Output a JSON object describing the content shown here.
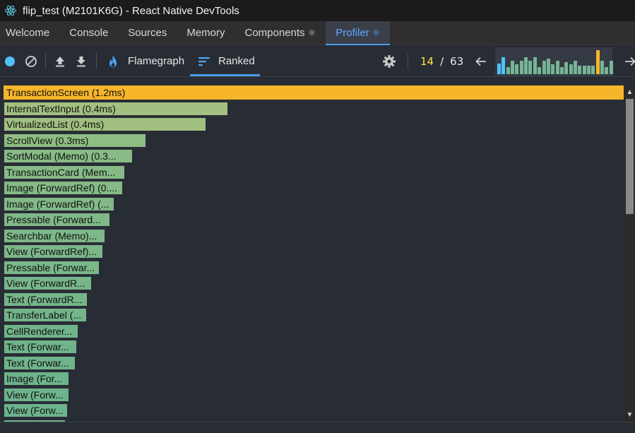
{
  "window": {
    "title": "flip_test (M2101K6G) - React Native DevTools"
  },
  "tabs": [
    {
      "label": "Welcome",
      "atom": ""
    },
    {
      "label": "Console",
      "atom": ""
    },
    {
      "label": "Sources",
      "atom": ""
    },
    {
      "label": "Memory",
      "atom": ""
    },
    {
      "label": "Components",
      "atom": "⚛"
    },
    {
      "label": "Profiler",
      "atom": "⚛"
    }
  ],
  "toolbar": {
    "flamegraph_label": "Flamegraph",
    "ranked_label": "Ranked",
    "commit_current": "14",
    "commit_separator": "/",
    "commit_total": "63",
    "commit_bars": [
      0.45,
      0.7,
      0.3,
      0.55,
      0.4,
      0.55,
      0.7,
      0.55,
      0.7,
      0.3,
      0.55,
      0.65,
      0.4,
      0.55,
      0.3,
      0.5,
      0.4,
      0.55,
      0.35,
      0.35,
      0.35,
      0.35,
      1.0,
      0.55,
      0.3,
      0.55
    ],
    "selected_commit_index": 22,
    "colors": {
      "accent": "#4a9ae8",
      "record": "#4fc3f7",
      "current": "#ffe24a",
      "selected_bar": "#f6b52a"
    }
  },
  "ranked": {
    "items": [
      {
        "label": "TransactionScreen (1.2ms)",
        "fraction": 1.0,
        "color": "#f6b52a",
        "selected": true
      },
      {
        "label": "InternalTextInput (0.4ms)",
        "fraction": 0.362,
        "color": "#a3c080"
      },
      {
        "label": "VirtualizedList (0.4ms)",
        "fraction": 0.327,
        "color": "#a0bf80"
      },
      {
        "label": "ScrollView (0.3ms)",
        "fraction": 0.23,
        "color": "#8ebd84"
      },
      {
        "label": "SortModal (Memo) (0.3...",
        "fraction": 0.208,
        "color": "#88bb86"
      },
      {
        "label": "TransactionCard (Mem...",
        "fraction": 0.196,
        "color": "#86ba86"
      },
      {
        "label": "Image (ForwardRef) (0....",
        "fraction": 0.193,
        "color": "#85ba86"
      },
      {
        "label": "Image (ForwardRef) (...",
        "fraction": 0.179,
        "color": "#82b987"
      },
      {
        "label": "Pressable (Forward...",
        "fraction": 0.172,
        "color": "#80b888"
      },
      {
        "label": "Searchbar (Memo)...",
        "fraction": 0.164,
        "color": "#7db888"
      },
      {
        "label": "View (ForwardRef)...",
        "fraction": 0.161,
        "color": "#7cb788"
      },
      {
        "label": "Pressable (Forwar...",
        "fraction": 0.155,
        "color": "#7ab789"
      },
      {
        "label": "View (ForwardR...",
        "fraction": 0.142,
        "color": "#77b68a"
      },
      {
        "label": "Text (ForwardR...",
        "fraction": 0.136,
        "color": "#75b58a"
      },
      {
        "label": "TransferLabel (...",
        "fraction": 0.134,
        "color": "#74b58a"
      },
      {
        "label": "CellRenderer...",
        "fraction": 0.121,
        "color": "#71b48b"
      },
      {
        "label": "Text (Forwar...",
        "fraction": 0.119,
        "color": "#70b48b"
      },
      {
        "label": "Text (Forwar...",
        "fraction": 0.116,
        "color": "#70b48b"
      },
      {
        "label": "Image (For...",
        "fraction": 0.106,
        "color": "#6db38c"
      },
      {
        "label": "View (Forw...",
        "fraction": 0.106,
        "color": "#6db38c"
      },
      {
        "label": "View (Forw...",
        "fraction": 0.104,
        "color": "#6db38c"
      },
      {
        "label": "",
        "fraction": 0.1,
        "color": "#6cb28c"
      }
    ]
  }
}
